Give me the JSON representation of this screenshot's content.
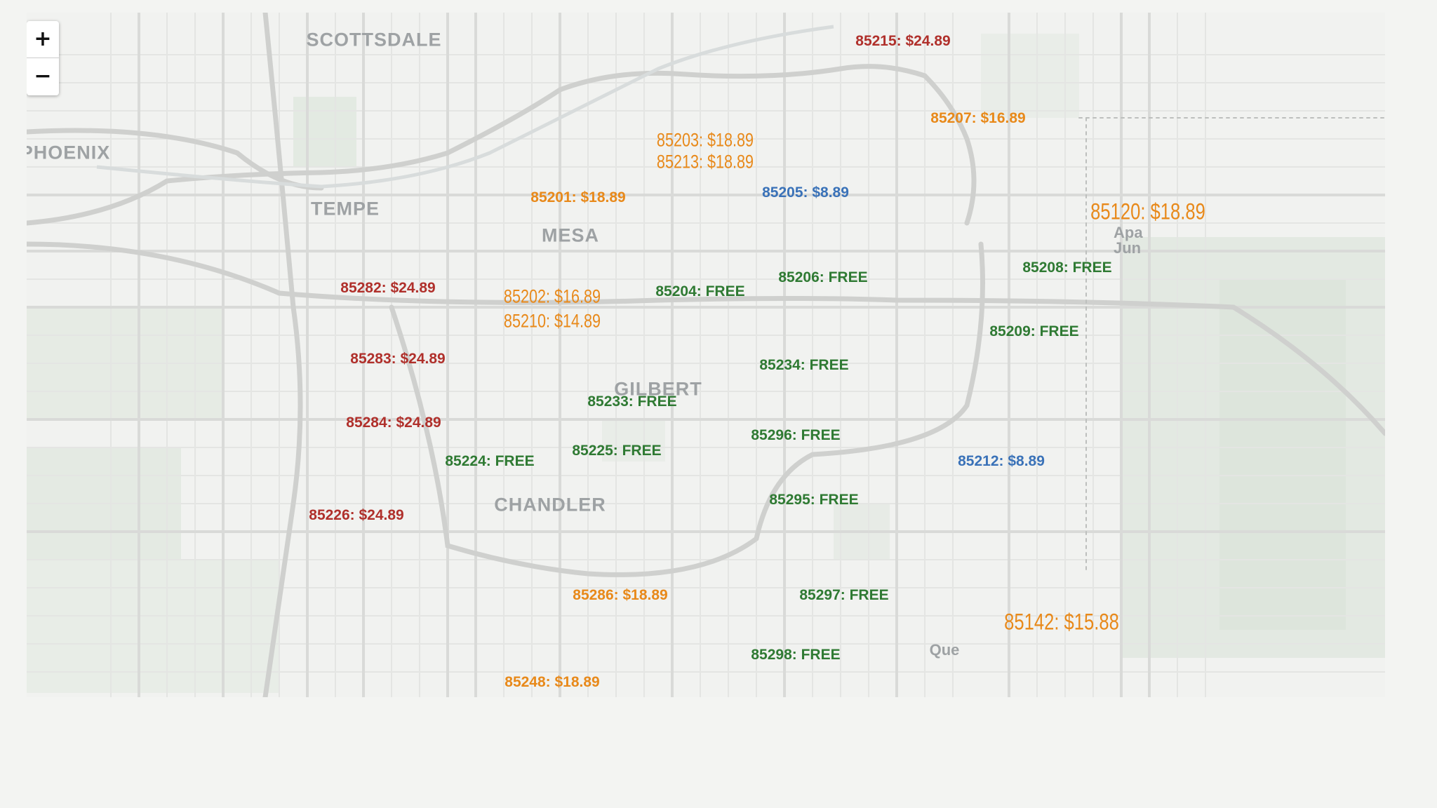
{
  "zoom": {
    "in_label": "+",
    "out_label": "−"
  },
  "colors": {
    "red": "#b0302b",
    "orange": "#e8891a",
    "blue": "#3a72b8",
    "green": "#2f7a33",
    "place_label": "#9ea2a4"
  },
  "places": {
    "scottsdale": "SCOTTSDALE",
    "phoenix": "PHOENIX",
    "tempe": "TEMPE",
    "mesa": "MESA",
    "gilbert": "GILBERT",
    "chandler": "CHANDLER",
    "apache_junction": "Apa Jun",
    "queen_creek": "Que"
  },
  "zip_labels": {
    "z85215": {
      "text": "85215: $24.89",
      "color": "red"
    },
    "z85207": {
      "text": "85207: $16.89",
      "color": "orange"
    },
    "z85203": {
      "text": "85203: $18.89",
      "color": "orange"
    },
    "z85213": {
      "text": "85213: $18.89",
      "color": "orange"
    },
    "z85201": {
      "text": "85201: $18.89",
      "color": "orange"
    },
    "z85205": {
      "text": "85205: $8.89",
      "color": "blue"
    },
    "z85120": {
      "text": "85120: $18.89",
      "color": "orange"
    },
    "z85206": {
      "text": "85206: FREE",
      "color": "green"
    },
    "z85208": {
      "text": "85208: FREE",
      "color": "green"
    },
    "z85282": {
      "text": "85282: $24.89",
      "color": "red"
    },
    "z85202": {
      "text": "85202: $16.89",
      "color": "orange"
    },
    "z85210": {
      "text": "85210: $14.89",
      "color": "orange"
    },
    "z85204": {
      "text": "85204: FREE",
      "color": "green"
    },
    "z85209": {
      "text": "85209: FREE",
      "color": "green"
    },
    "z85283": {
      "text": "85283: $24.89",
      "color": "red"
    },
    "z85234": {
      "text": "85234: FREE",
      "color": "green"
    },
    "z85233": {
      "text": "85233: FREE",
      "color": "green"
    },
    "z85284": {
      "text": "85284: $24.89",
      "color": "red"
    },
    "z85296": {
      "text": "85296: FREE",
      "color": "green"
    },
    "z85225": {
      "text": "85225: FREE",
      "color": "green"
    },
    "z85224": {
      "text": "85224: FREE",
      "color": "green"
    },
    "z85212": {
      "text": "85212: $8.89",
      "color": "blue"
    },
    "z85295": {
      "text": "85295: FREE",
      "color": "green"
    },
    "z85226": {
      "text": "85226: $24.89",
      "color": "red"
    },
    "z85286": {
      "text": "85286: $18.89",
      "color": "orange"
    },
    "z85297": {
      "text": "85297: FREE",
      "color": "green"
    },
    "z85142": {
      "text": "85142: $15.88",
      "color": "orange"
    },
    "z85298": {
      "text": "85298: FREE",
      "color": "green"
    },
    "z85248": {
      "text": "85248: $18.89",
      "color": "orange"
    }
  }
}
